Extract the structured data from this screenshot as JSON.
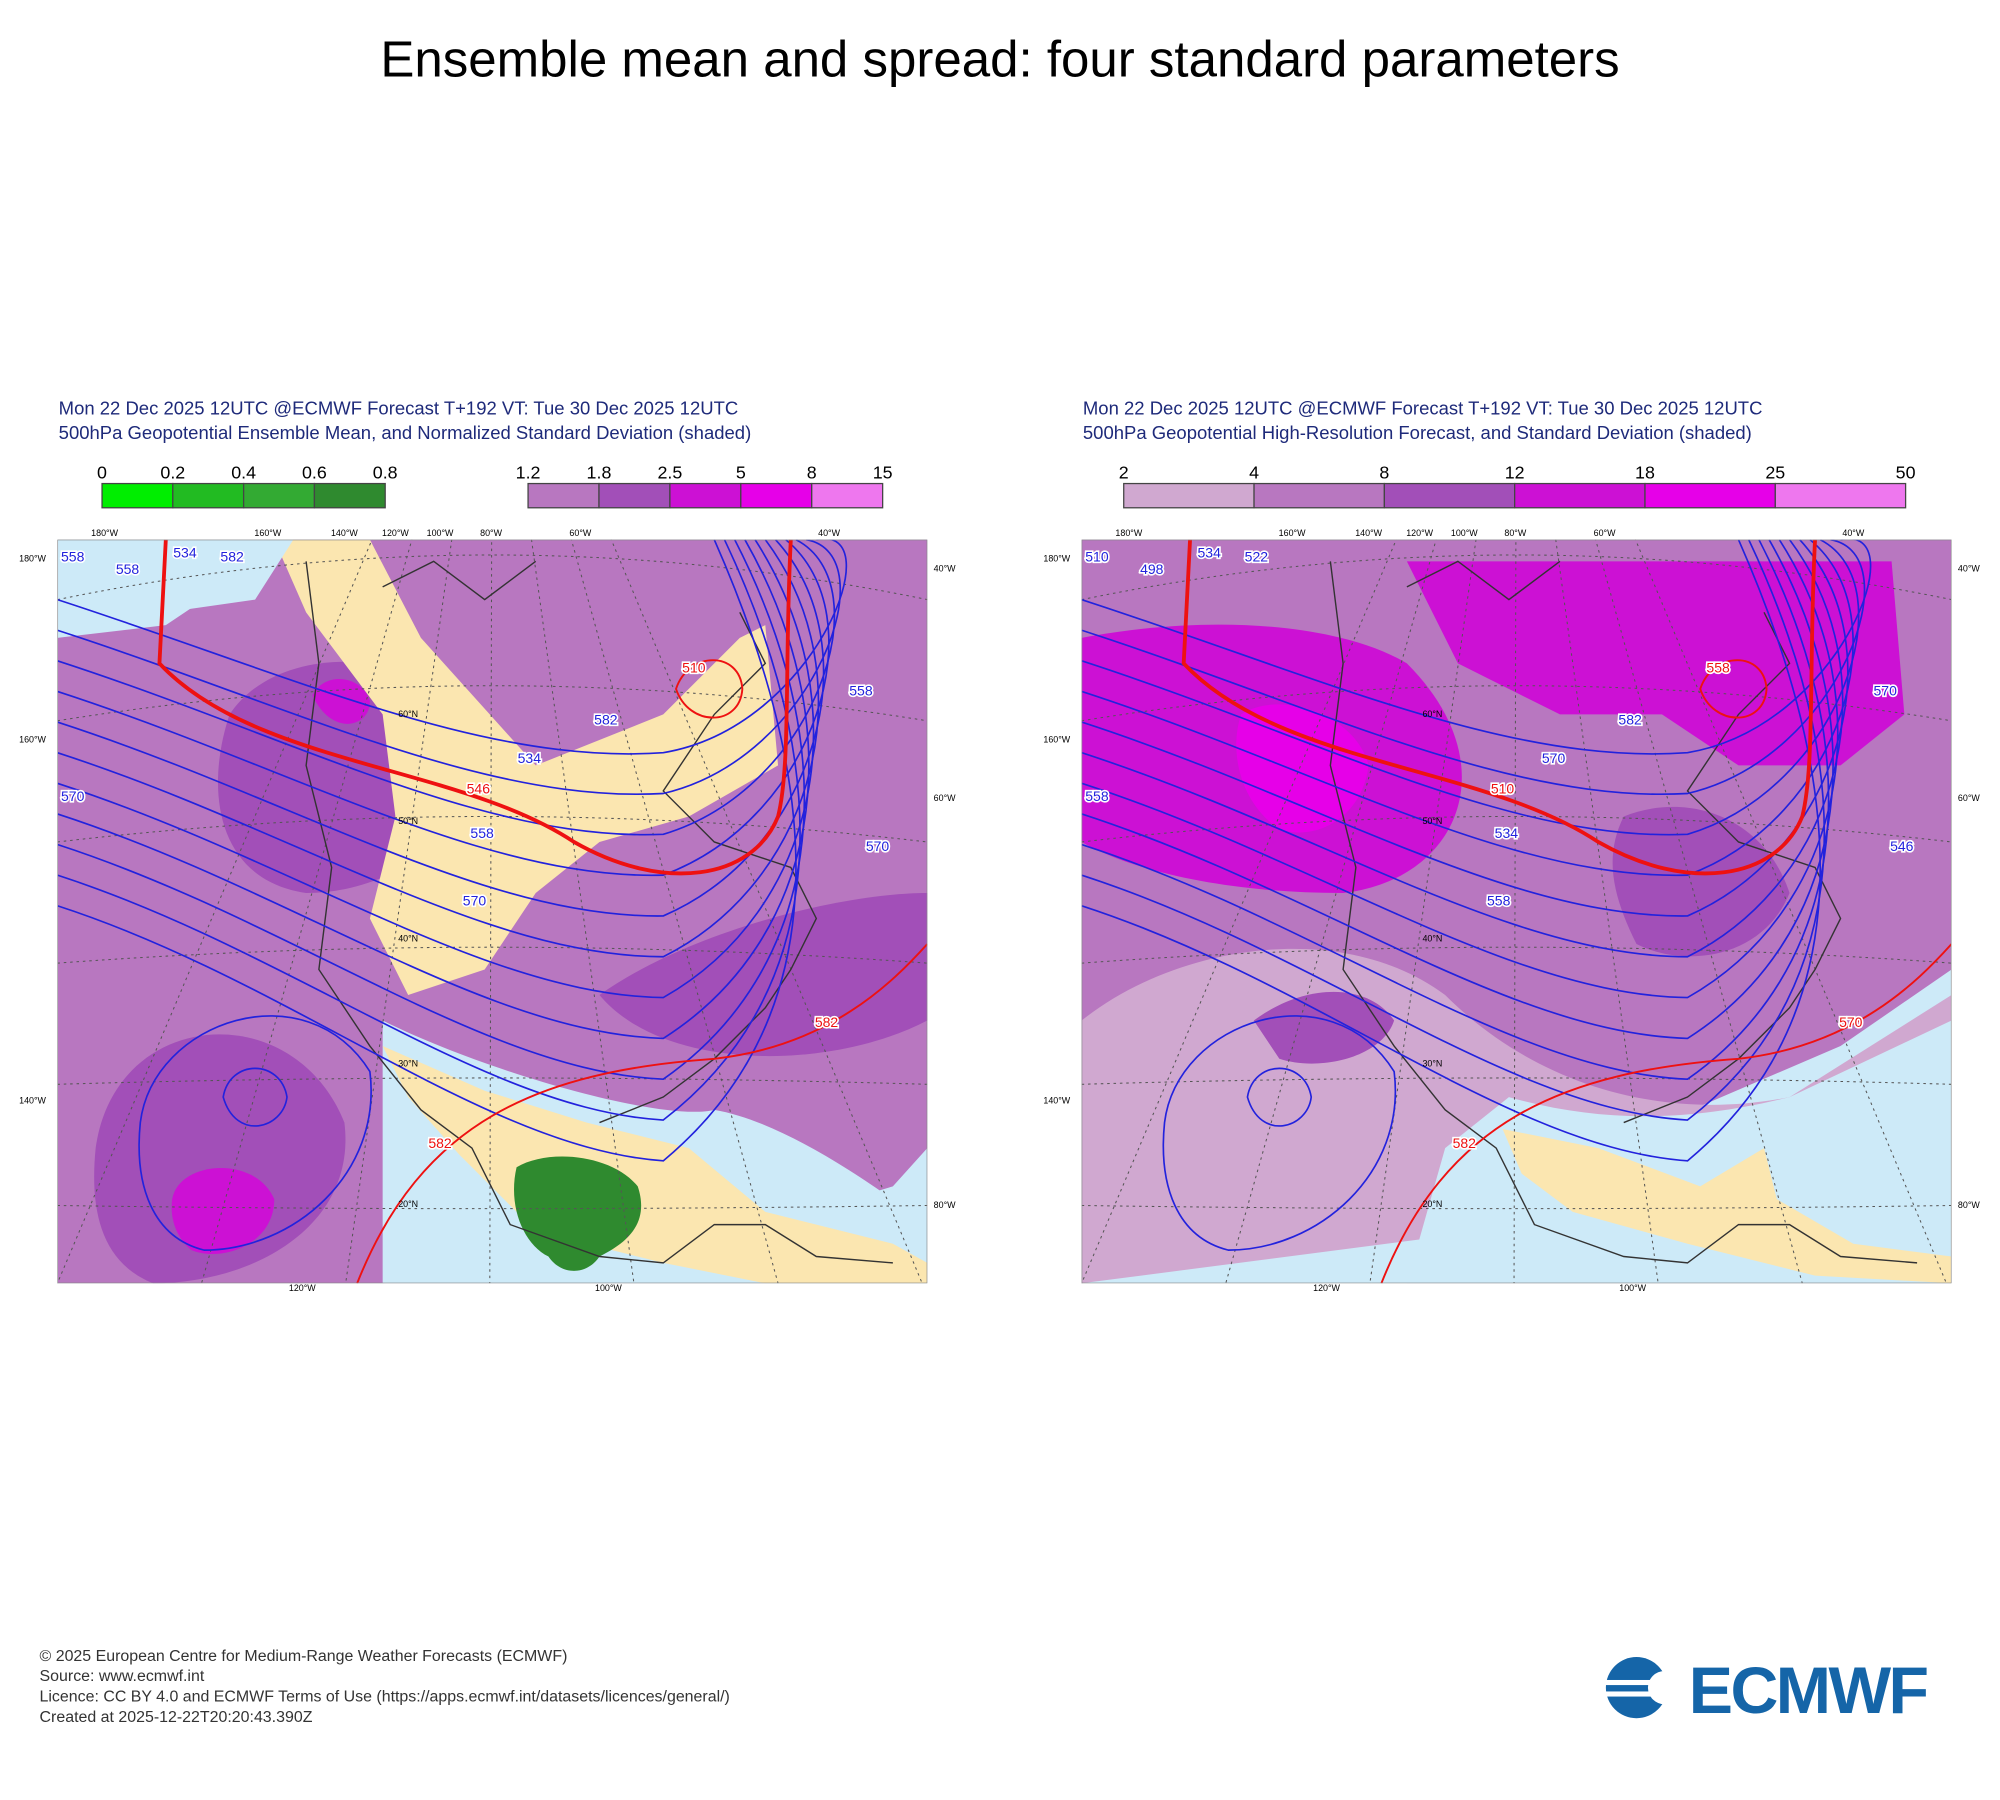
{
  "title": "Ensemble mean and spread: four standard parameters",
  "panels": [
    {
      "header": [
        "Mon 22 Dec 2025 12UTC @ECMWF Forecast T+192 VT: Tue 30 Dec 2025 12UTC",
        "500hPa Geopotential Ensemble Mean, and Normalized Standard Deviation (shaded)"
      ],
      "colorbars": [
        {
          "labels": [
            0,
            0.2,
            0.4,
            0.6,
            0.8
          ],
          "colors": [
            "#00ee00",
            "#22bb22",
            "#33aa33",
            "#2f8a2f"
          ]
        },
        {
          "labels": [
            1.2,
            1.8,
            2.5,
            5,
            8,
            15
          ],
          "colors": [
            "#b877c0",
            "#a24fb8",
            "#cc11d4",
            "#e600e8",
            "#ee77ee"
          ]
        }
      ],
      "lon_labels": [
        "180°W",
        "160°W",
        "140°W",
        "120°W",
        "100°W",
        "80°W",
        "60°W",
        "40°W"
      ],
      "side_labels": [
        "180°W",
        "160°W",
        "140°W",
        "40°W",
        "60°W",
        "80°W",
        "120°W",
        "100°W"
      ],
      "lat_labels": [
        "60°N",
        "50°N",
        "40°N",
        "30°N",
        "20°N"
      ],
      "contour_labels": [
        "558",
        "534",
        "582",
        "558",
        "570",
        "534",
        "582",
        "558",
        "570",
        "558",
        "570",
        "546",
        "510",
        "582",
        "582"
      ]
    },
    {
      "header": [
        "Mon 22 Dec 2025 12UTC @ECMWF Forecast T+192 VT: Tue 30 Dec 2025 12UTC",
        "500hPa Geopotential High-Resolution Forecast, and Standard Deviation (shaded)"
      ],
      "colorbars": [
        {
          "labels": [
            2,
            4,
            8,
            12,
            18,
            25,
            50
          ],
          "colors": [
            "#d0a8d0",
            "#b877c0",
            "#a24fb8",
            "#cc11d4",
            "#e600e8",
            "#ee77ee"
          ]
        }
      ],
      "lon_labels": [
        "180°W",
        "160°W",
        "140°W",
        "120°W",
        "100°W",
        "80°W",
        "60°W",
        "40°W"
      ],
      "side_labels": [
        "180°W",
        "160°W",
        "140°W",
        "40°W",
        "60°W",
        "80°W",
        "120°W",
        "100°W"
      ],
      "lat_labels": [
        "60°N",
        "50°N",
        "40°N",
        "30°N",
        "20°N"
      ],
      "contour_labels": [
        "510",
        "534",
        "522",
        "498",
        "558",
        "570",
        "582",
        "534",
        "558",
        "570",
        "546",
        "510",
        "558",
        "570",
        "582"
      ]
    }
  ],
  "footer": {
    "lines": [
      "© 2025 European Centre for Medium-Range Weather Forecasts (ECMWF)",
      "Source: www.ecmwf.int",
      "Licence: CC BY 4.0 and ECMWF Terms of Use (https://apps.ecmwf.int/datasets/licences/general/)",
      "Created at 2025-12-22T20:20:43.390Z"
    ],
    "logo": "ECMWF"
  }
}
